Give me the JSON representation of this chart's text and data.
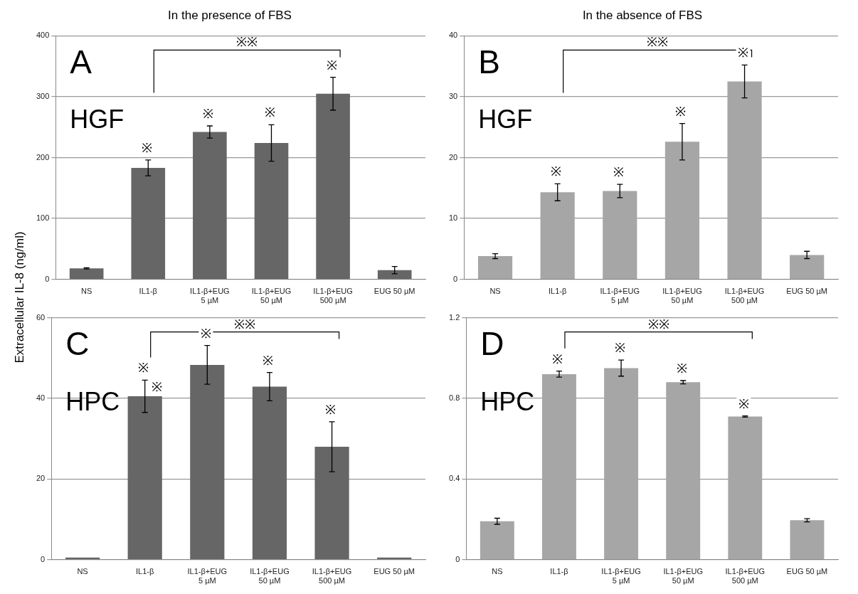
{
  "chart_data": [
    {
      "type": "bar",
      "title": "In the presence of FBS",
      "ylabel": "Extracellular IL-8 (ng/ml)",
      "categories": [
        "NS",
        "IL1-β",
        "IL1-β+EUG\n5 µM",
        "IL1-β+EUG\n50 µM",
        "IL1-β+EUG\n500 µM",
        "EUG 50 µM"
      ],
      "values": [
        18,
        183,
        242,
        224,
        305,
        15
      ],
      "errors": [
        1,
        13,
        10,
        30,
        27,
        6
      ],
      "color": "#666666",
      "ylim": [
        0,
        400
      ],
      "yticks": [
        0,
        100,
        200,
        300,
        400
      ],
      "grid": "y",
      "annotations": [
        "A",
        "HGF",
        "※※",
        "※",
        "※",
        "※",
        "※"
      ]
    },
    {
      "type": "bar",
      "title": "In the absence of FBS",
      "categories": [
        "NS",
        "IL1-β",
        "IL1-β+EUG\n5 µM",
        "IL1-β+EUG\n50 µM",
        "IL1-β+EUG\n500 µM",
        "EUG 50 µM"
      ],
      "values": [
        3.8,
        14.3,
        14.5,
        22.6,
        32.5,
        4.0
      ],
      "errors": [
        0.4,
        1.4,
        1.1,
        3,
        2.7,
        0.6
      ],
      "color": "#a6a6a6",
      "ylim": [
        0,
        40
      ],
      "yticks": [
        0,
        10,
        20,
        30,
        40
      ],
      "grid": "y",
      "annotations": [
        "B",
        "HGF",
        "※※",
        "※",
        "※",
        "※",
        "※"
      ]
    },
    {
      "type": "bar",
      "categories": [
        "NS",
        "IL1-β",
        "IL1-β+EUG\n5 µM",
        "IL1-β+EUG\n50 µM",
        "IL1-β+EUG\n500 µM",
        "EUG 50 µM"
      ],
      "values": [
        0.5,
        40.5,
        48.3,
        42.9,
        28,
        0.5
      ],
      "errors": [
        null,
        4,
        4.8,
        3.5,
        6.2,
        null
      ],
      "color": "#666666",
      "ylim": [
        0,
        60
      ],
      "yticks": [
        0,
        20,
        40,
        60
      ],
      "grid": "y",
      "annotations": [
        "C",
        "HPC",
        "※※",
        "※",
        "※",
        "※",
        "※",
        "※"
      ]
    },
    {
      "type": "bar",
      "categories": [
        "NS",
        "IL1-β",
        "IL1-β+EUG\n5 µM",
        "IL1-β+EUG\n50 µM",
        "IL1-β+EUG\n500 µM",
        "EUG 50 µM"
      ],
      "values": [
        0.19,
        0.92,
        0.95,
        0.88,
        0.71,
        0.195
      ],
      "errors": [
        0.015,
        0.015,
        0.04,
        0.008,
        0.003,
        0.008
      ],
      "color": "#a6a6a6",
      "ylim": [
        0,
        1.2
      ],
      "yticks": [
        0,
        0.4,
        0.8,
        1.2
      ],
      "grid": "y",
      "annotations": [
        "D",
        "HPC",
        "※※",
        "※",
        "※",
        "※",
        "※"
      ]
    }
  ]
}
